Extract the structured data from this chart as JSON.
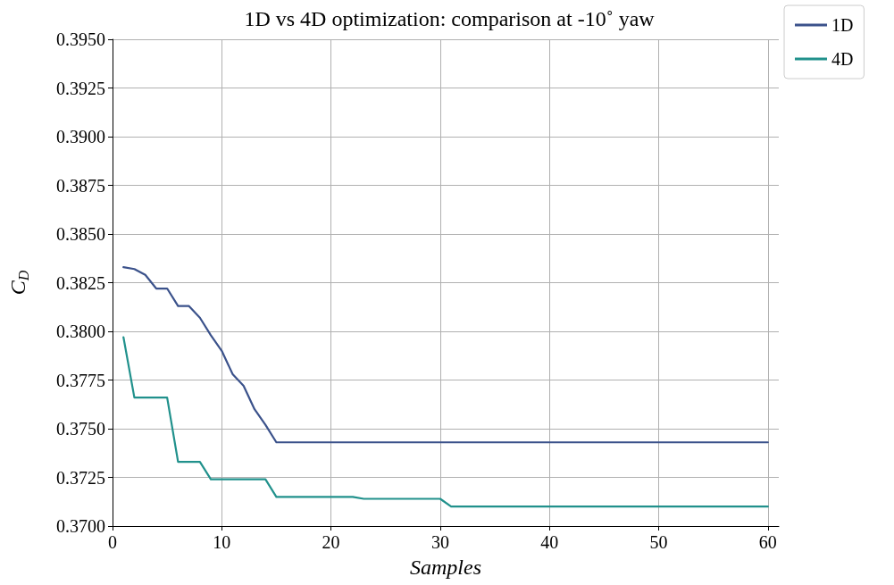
{
  "chart_data": {
    "type": "line",
    "title": "1D vs 4D optimization: comparison at -10˚ yaw",
    "xlabel": "Samples",
    "ylabel": "C$_{D}$",
    "xlim": [
      0,
      61
    ],
    "xticks": [
      0,
      10,
      20,
      30,
      40,
      50,
      60
    ],
    "ylim": [
      0.37,
      0.395
    ],
    "yticks": [
      {
        "value": 0.37,
        "label": "0.3700"
      },
      {
        "value": 0.3725,
        "label": "0.3725"
      },
      {
        "value": 0.375,
        "label": "0.3750"
      },
      {
        "value": 0.3775,
        "label": "0.3775"
      },
      {
        "value": 0.38,
        "label": "0.3800"
      },
      {
        "value": 0.3825,
        "label": "0.3825"
      },
      {
        "value": 0.385,
        "label": "0.3850"
      },
      {
        "value": 0.3875,
        "label": "0.3875"
      },
      {
        "value": 0.39,
        "label": "0.3900"
      },
      {
        "value": 0.3925,
        "label": "0.3925"
      },
      {
        "value": 0.395,
        "label": "0.3950"
      }
    ],
    "grid": true,
    "legend": "top right",
    "marker": "none",
    "line_style": "solid",
    "series": [
      {
        "name": "1D",
        "color": "#3b528b",
        "x": [
          1,
          2,
          3,
          4,
          5,
          6,
          7,
          8,
          9,
          10,
          11,
          12,
          13,
          14,
          15,
          60
        ],
        "values": [
          0.3833,
          0.3832,
          0.3829,
          0.3822,
          0.3822,
          0.3813,
          0.3813,
          0.3807,
          0.3798,
          0.379,
          0.3778,
          0.3772,
          0.376,
          0.3752,
          0.3743,
          0.3743
        ]
      },
      {
        "name": "4D",
        "color": "#21918c",
        "x": [
          1,
          2,
          5,
          6,
          8,
          9,
          14,
          15,
          22,
          23,
          30,
          31,
          60
        ],
        "values": [
          0.3797,
          0.3766,
          0.3766,
          0.3733,
          0.3733,
          0.3724,
          0.3724,
          0.3715,
          0.3715,
          0.3714,
          0.3714,
          0.371,
          0.371
        ]
      }
    ]
  }
}
